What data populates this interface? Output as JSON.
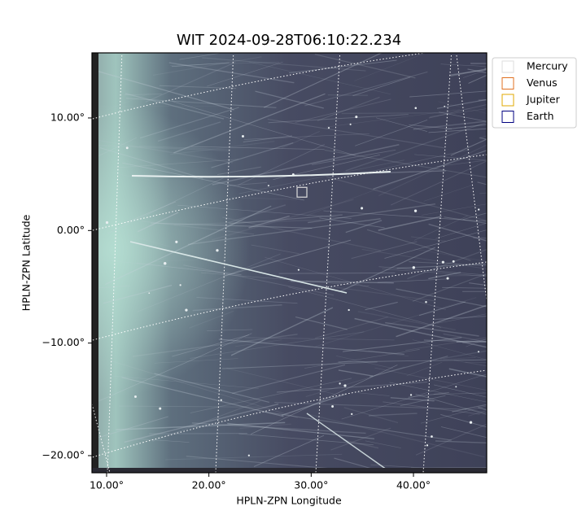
{
  "chart_data": {
    "type": "image",
    "title": "WIT 2024-09-28T06:10:22.234",
    "x_label": "HPLN-ZPN Longitude",
    "y_label": "HPLN-ZPN Latitude",
    "xlim": [
      8.57,
      47.16
    ],
    "ylim": [
      -21.52,
      15.78
    ],
    "xticks": [
      {
        "value": 10,
        "label": "10.00°"
      },
      {
        "value": 20,
        "label": "20.00°"
      },
      {
        "value": 30,
        "label": "30.00°"
      },
      {
        "value": 40,
        "label": "40.00°"
      }
    ],
    "yticks": [
      {
        "value": 10,
        "label": "10.00°"
      },
      {
        "value": 0,
        "label": "0.00°"
      },
      {
        "value": -10,
        "label": "−10.00°"
      },
      {
        "value": -20,
        "label": "−20.00°"
      }
    ],
    "series": [
      {
        "name": "Mercury",
        "color": "#dddddd",
        "x": [
          29.1
        ],
        "y": [
          3.4
        ]
      },
      {
        "name": "Venus",
        "color": "#e07020"
      },
      {
        "name": "Jupiter",
        "color": "#e0a800"
      },
      {
        "name": "Earth",
        "color": "#000080"
      }
    ]
  }
}
